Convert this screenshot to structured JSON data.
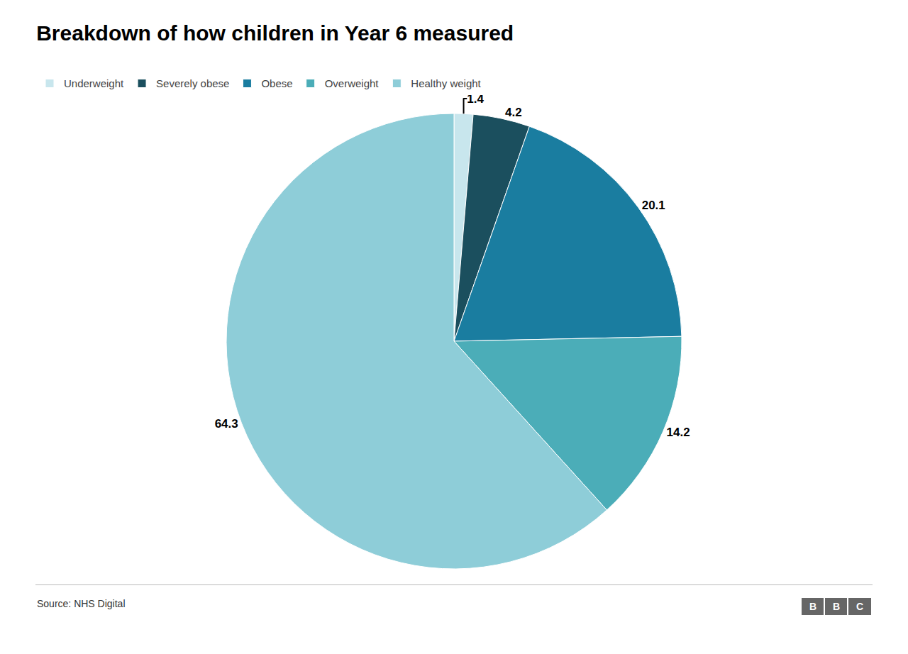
{
  "chart_data": {
    "type": "pie",
    "title": "Breakdown of how children in Year 6 measured",
    "categories": [
      "Underweight",
      "Severely obese",
      "Obese",
      "Overweight",
      "Healthy weight"
    ],
    "values": [
      1.4,
      4.2,
      20.1,
      14.2,
      64.3
    ],
    "colors": [
      "#c8e6ed",
      "#1b4f5e",
      "#1a7da0",
      "#4badb8",
      "#8ecdd8"
    ],
    "data_labels": true,
    "legend": "upper left",
    "annotations": [
      "Source: NHS Digital",
      "BBC"
    ]
  }
}
